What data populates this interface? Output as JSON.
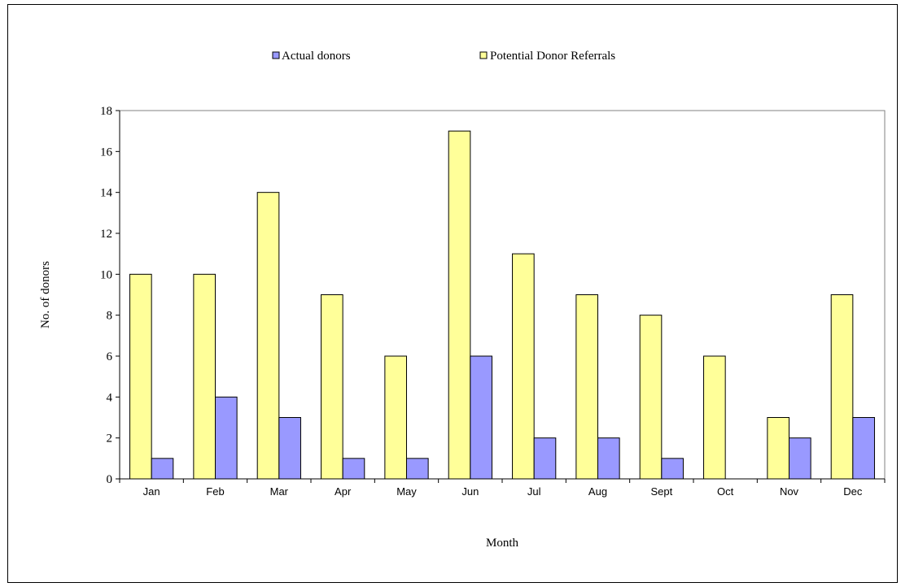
{
  "chart_data": {
    "type": "bar",
    "categories": [
      "Jan",
      "Feb",
      "Mar",
      "Apr",
      "May",
      "Jun",
      "Jul",
      "Aug",
      "Sept",
      "Oct",
      "Nov",
      "Dec"
    ],
    "series": [
      {
        "name": "Potential Donor Referrals",
        "color": "#ffff99",
        "values": [
          10,
          10,
          14,
          9,
          6,
          17,
          11,
          9,
          8,
          6,
          3,
          9
        ]
      },
      {
        "name": "Actual donors",
        "color": "#9999ff",
        "values": [
          1,
          4,
          3,
          1,
          1,
          6,
          2,
          2,
          1,
          0,
          2,
          3
        ]
      }
    ],
    "legend": {
      "placement": "top",
      "entries": [
        "Actual donors",
        "Potential Donor Referrals"
      ]
    },
    "xlabel": "Month",
    "ylabel": "No. of donors",
    "ylim": [
      0,
      18
    ],
    "yticks": [
      0,
      2,
      4,
      6,
      8,
      10,
      12,
      14,
      16,
      18
    ],
    "grid": false
  }
}
